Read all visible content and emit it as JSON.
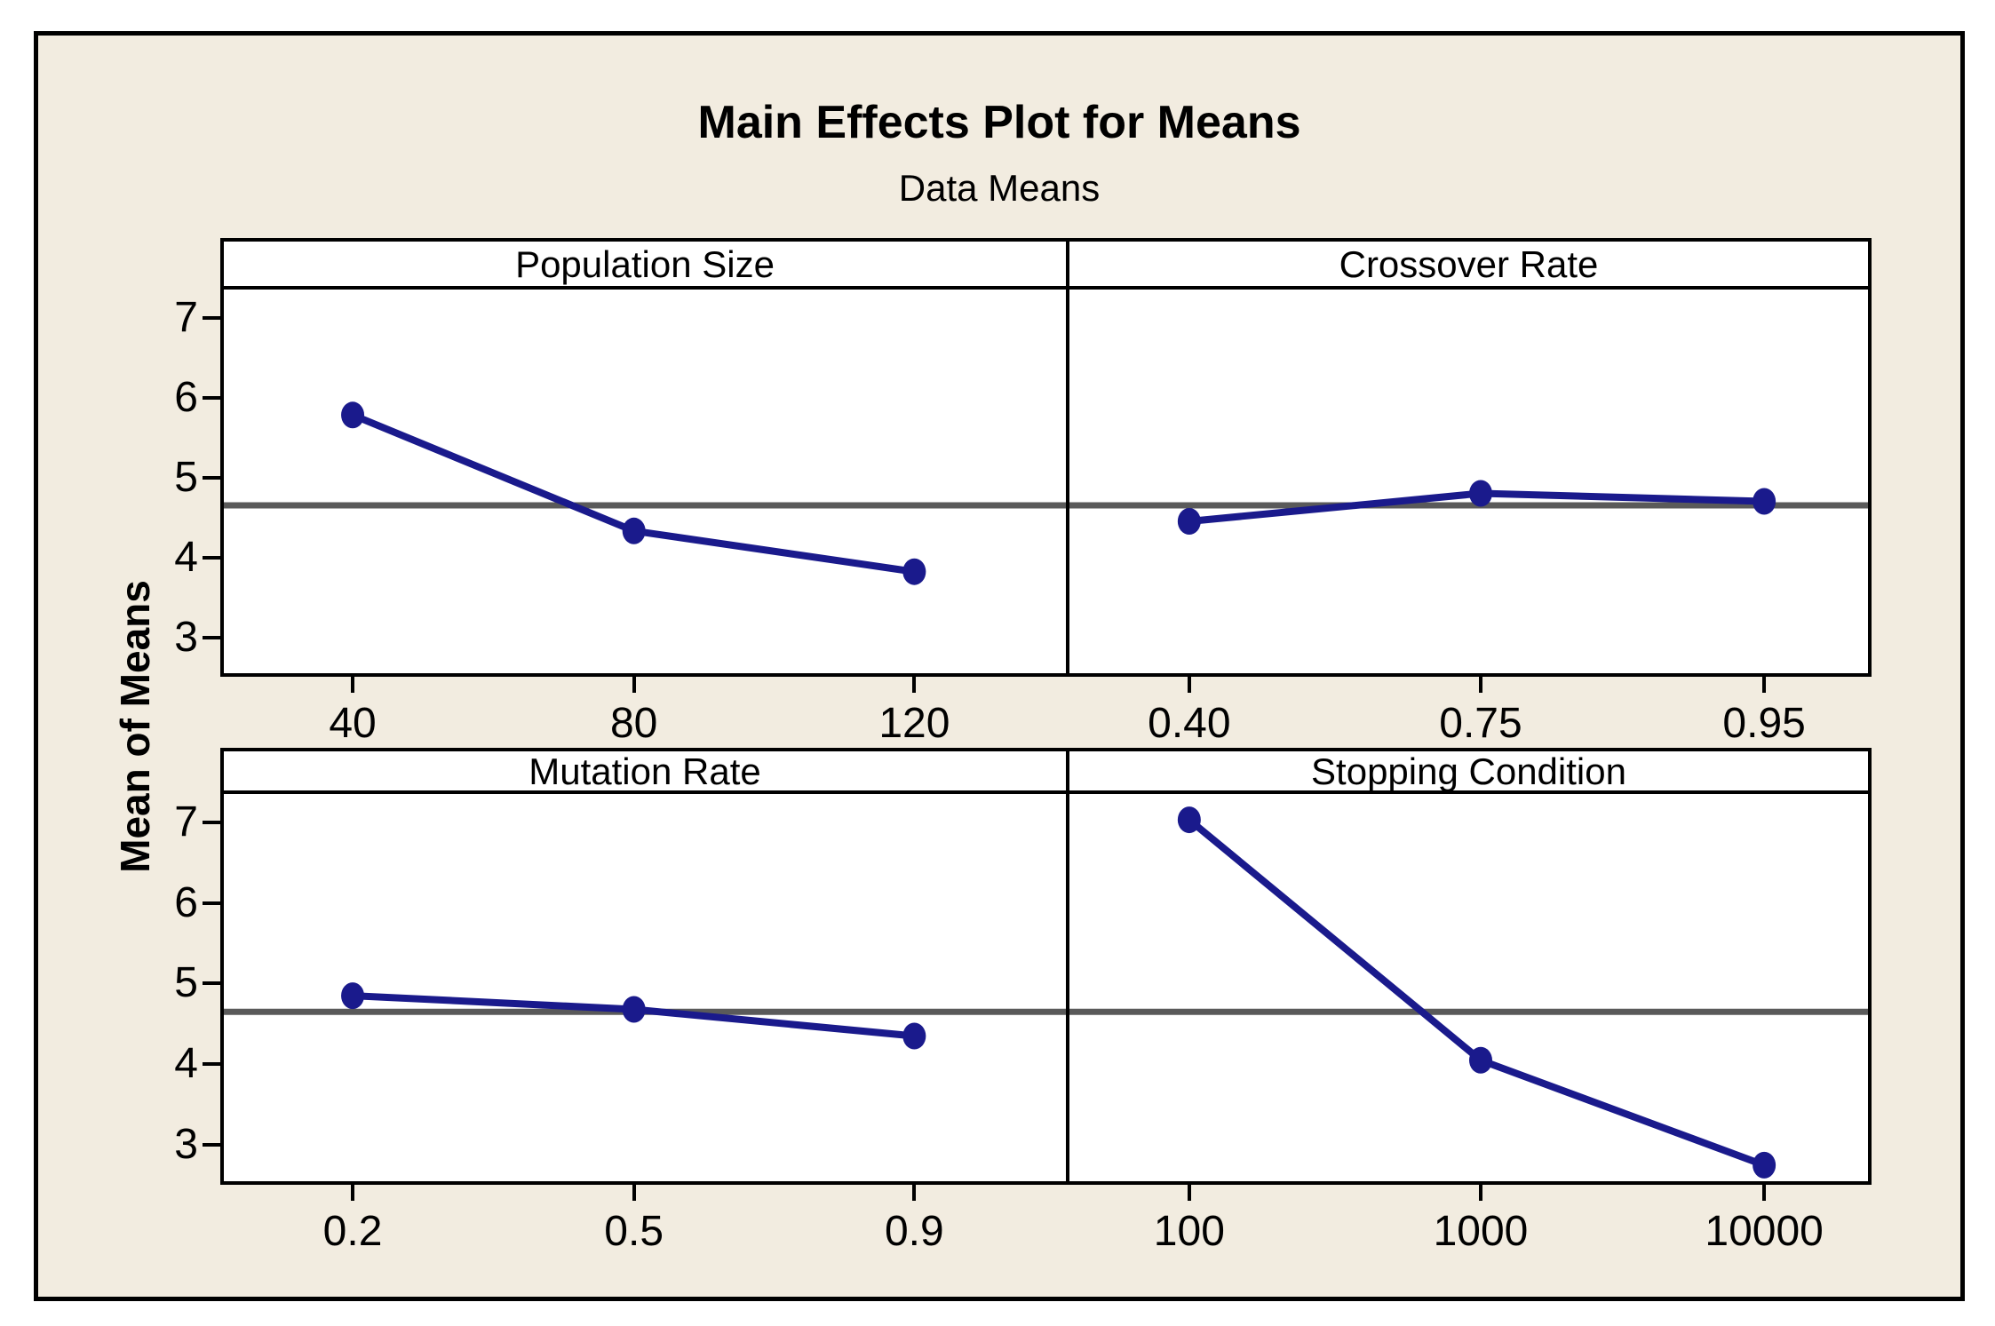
{
  "figure": {
    "title": "Main Effects Plot for Means",
    "subtitle": "Data Means",
    "ylabel": "Mean of Means"
  },
  "colors": {
    "background": "#F2ECE0",
    "plot_background": "#FFFFFF",
    "series_line": "#1A1A8C",
    "marker": "#1A1A8C",
    "reference_line": "#5A5A5A",
    "border": "#000000"
  },
  "chart_data": {
    "type": "line",
    "title": "Main Effects Plot for Means",
    "subtitle": "Data Means",
    "ylabel": "Mean of Means",
    "ylim": [
      2.55,
      7.35
    ],
    "yticks": [
      3,
      4,
      5,
      6,
      7
    ],
    "reference_mean": 4.65,
    "grid": false,
    "legend": "none",
    "panels": [
      {
        "factor": "Population Size",
        "categories": [
          "40",
          "80",
          "120"
        ],
        "values": [
          5.78,
          4.33,
          3.82
        ]
      },
      {
        "factor": "Crossover Rate",
        "categories": [
          "0.40",
          "0.75",
          "0.95"
        ],
        "values": [
          4.45,
          4.8,
          4.7
        ]
      },
      {
        "factor": "Mutation Rate",
        "categories": [
          "0.2",
          "0.5",
          "0.9"
        ],
        "values": [
          4.85,
          4.68,
          4.35
        ]
      },
      {
        "factor": "Stopping Condition",
        "categories": [
          "100",
          "1000",
          "10000"
        ],
        "values": [
          7.03,
          4.05,
          2.75
        ]
      }
    ]
  }
}
